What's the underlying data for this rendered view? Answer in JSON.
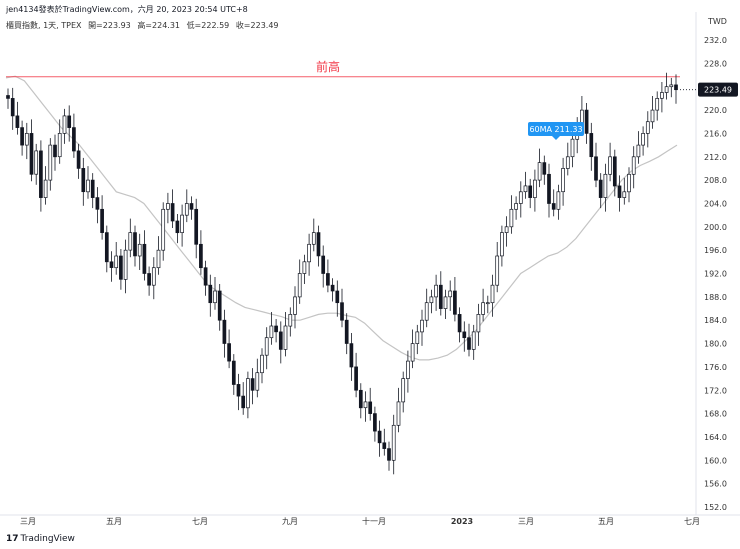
{
  "header": {
    "publish_line": "jen4134發表於TradingView.com，六月 20, 2023 20:54 UTC+8",
    "symbol": "櫃買指數, 1天, TPEX",
    "open": "開=223.93",
    "high": "高=224.31",
    "low": "低=222.59",
    "close": "收=223.49"
  },
  "footer": {
    "brand": "TradingView",
    "logo": "tradingview-logo-icon"
  },
  "chart_data": {
    "type": "candlestick",
    "currency": "TWD",
    "ylim": [
      152,
      234
    ],
    "y_ticks": [
      232,
      228,
      224,
      220,
      216,
      212,
      208,
      204,
      200,
      196,
      192,
      188,
      184,
      180,
      176,
      172,
      168,
      164,
      160,
      156,
      152
    ],
    "x_ticks": [
      "三月",
      "五月",
      "七月",
      "九月",
      "十一月",
      "2023",
      "三月",
      "五月",
      "七月"
    ],
    "horizontal_line": {
      "label": "前高",
      "value": 225.7,
      "color": "#f23645"
    },
    "last_price": {
      "value": "223.49",
      "num": 223.49
    },
    "ma_label": {
      "text": "60MA 211.33",
      "color": "#2196f3"
    },
    "close_series": [
      222,
      219,
      217,
      214,
      216,
      209,
      213,
      205,
      208,
      214,
      212,
      216,
      219,
      217,
      213,
      210,
      206,
      208,
      205,
      203,
      199,
      194,
      193,
      195,
      191,
      196,
      199,
      195,
      197,
      192,
      190,
      193,
      196,
      203,
      204,
      201,
      199,
      202,
      204,
      203,
      197,
      193,
      190,
      187,
      189,
      184,
      180,
      177,
      173,
      171,
      169,
      174,
      172,
      175,
      178,
      181,
      183,
      182,
      179,
      183,
      185,
      188,
      192,
      194,
      197,
      199,
      195,
      192,
      190,
      189,
      187,
      184,
      180,
      176,
      172,
      169,
      170,
      168,
      165,
      163,
      162,
      160,
      166,
      170,
      174,
      177,
      180,
      182,
      184,
      187,
      188,
      190,
      186,
      188,
      189,
      185,
      182,
      181,
      179,
      182,
      185,
      187,
      187,
      190,
      195,
      199,
      200,
      203,
      204,
      206,
      207,
      205,
      208,
      211,
      209,
      204,
      203,
      206,
      210,
      212,
      215,
      217,
      220,
      216,
      212,
      208,
      205,
      209,
      212,
      207,
      205,
      206,
      209,
      212,
      214,
      216,
      218,
      220,
      222,
      223,
      224,
      224.31,
      223.49
    ],
    "ma_series": [
      225.5,
      225.8,
      225,
      223,
      221,
      219,
      217,
      215.5,
      214,
      212,
      210,
      208,
      206,
      205.5,
      205,
      204,
      202,
      200,
      198,
      196,
      194,
      192,
      190,
      189,
      188,
      187,
      186.2,
      185.8,
      185.4,
      185,
      184.6,
      184,
      184,
      184.5,
      185,
      185.2,
      185.2,
      184.8,
      184.5,
      183.5,
      182,
      180.5,
      179.5,
      178.5,
      177.7,
      177.2,
      177.2,
      177.5,
      178,
      179,
      180.5,
      182,
      184,
      186,
      188,
      190,
      192,
      193,
      194,
      195,
      195.5,
      196.5,
      198,
      200,
      202,
      204,
      206,
      208,
      209.5,
      210.5,
      211.2,
      212,
      213,
      214
    ]
  }
}
